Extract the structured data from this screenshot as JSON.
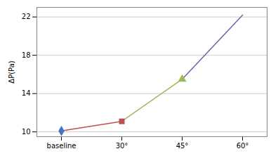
{
  "chart_data": {
    "type": "line",
    "categories": [
      "baseline",
      "30°",
      "45°",
      "60°"
    ],
    "ylabel": "ΔP(Pa)",
    "ylim": [
      9.5,
      23.0
    ],
    "yticks": [
      10,
      14,
      18,
      22
    ],
    "grid": true,
    "series": [
      {
        "type": "line",
        "color": "#c0504d",
        "values": [
          10.1,
          11.1,
          null,
          null
        ]
      },
      {
        "type": "line",
        "color": "#9bbb59",
        "values": [
          null,
          11.1,
          15.5,
          null
        ]
      },
      {
        "type": "line",
        "color": "#7060a8",
        "values": [
          null,
          null,
          15.5,
          22.2
        ]
      },
      {
        "type": "scatter",
        "color": "#4472c4",
        "marker": "diamond",
        "values": [
          10.1,
          null,
          null,
          null
        ]
      },
      {
        "type": "scatter",
        "color": "#c0504d",
        "marker": "square",
        "values": [
          null,
          11.1,
          null,
          null
        ]
      },
      {
        "type": "scatter",
        "color": "#9bbb59",
        "marker": "triangle",
        "values": [
          null,
          null,
          15.5,
          null
        ]
      }
    ]
  }
}
